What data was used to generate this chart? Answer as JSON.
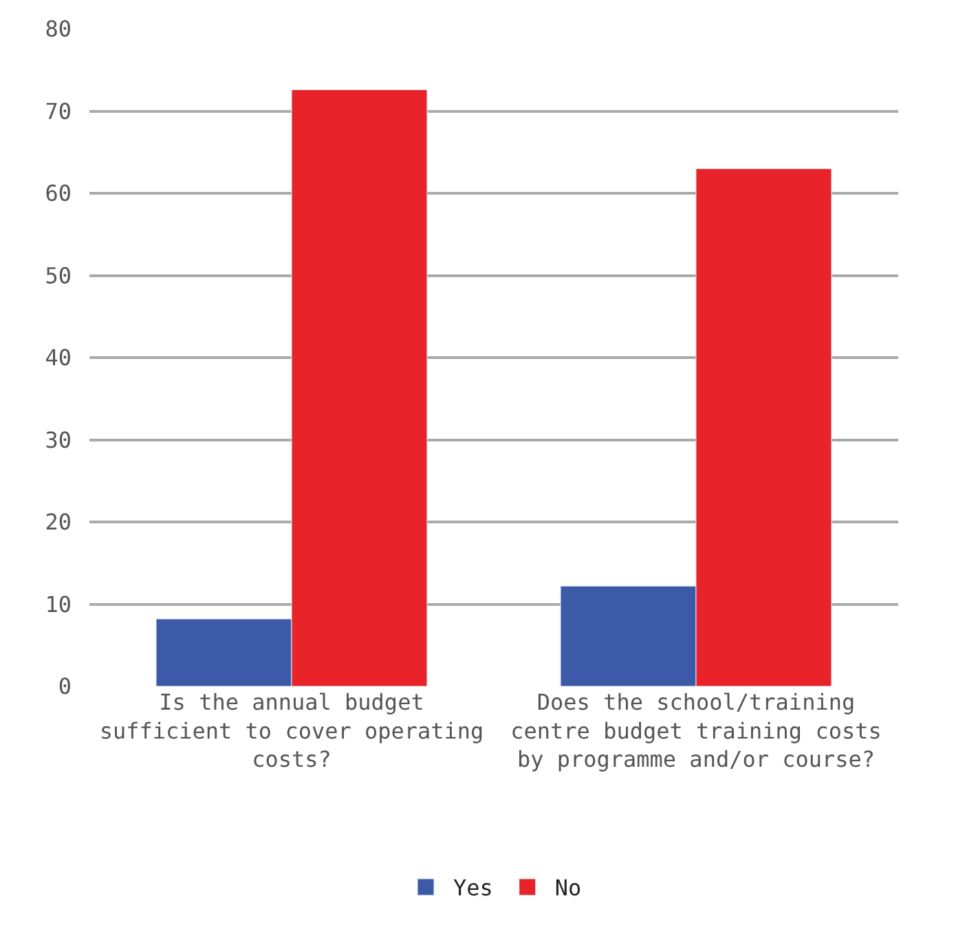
{
  "chart_data": {
    "type": "bar",
    "categories": [
      "Is the annual budget sufficient to cover operating costs?",
      "Does the school/training centre budget training costs by programme and/or course?"
    ],
    "series": [
      {
        "name": "Yes",
        "color": "#3d5aa8",
        "values": [
          8.2,
          12.2
        ]
      },
      {
        "name": "No",
        "color": "#e8232a",
        "values": [
          72.6,
          63.0
        ]
      }
    ],
    "ylim": [
      0,
      80
    ],
    "yticks": [
      0,
      10,
      20,
      30,
      40,
      50,
      60,
      70,
      80
    ],
    "grid": "y",
    "legend": "bottom"
  }
}
